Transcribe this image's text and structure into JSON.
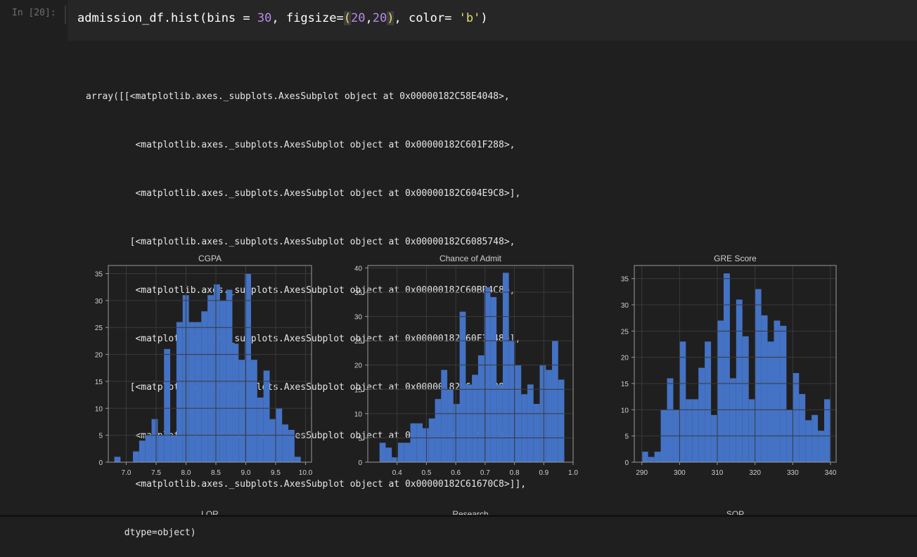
{
  "cell": {
    "prompt": "In [20]:",
    "code": {
      "fn": "admission_df.hist(bins ",
      "eq1": "=",
      "sp1": " ",
      "bins": "30",
      "mid": ", figsize",
      "eq2": "=",
      "lp": "(",
      "w": "20",
      "comma": ",",
      "h": "20",
      "rp": ")",
      "mid2": ", color",
      "eq3": "=",
      "sp2": " ",
      "color": "'b'",
      "end": ")"
    }
  },
  "output": {
    "lines": [
      "array([[<matplotlib.axes._subplots.AxesSubplot object at 0x00000182C58E4048>,",
      "         <matplotlib.axes._subplots.AxesSubplot object at 0x00000182C601F288>,",
      "         <matplotlib.axes._subplots.AxesSubplot object at 0x00000182C604E9C8>],",
      "        [<matplotlib.axes._subplots.AxesSubplot object at 0x00000182C6085748>,",
      "         <matplotlib.axes._subplots.AxesSubplot object at 0x00000182C60BB4C8>,",
      "         <matplotlib.axes._subplots.AxesSubplot object at 0x00000182C60F3248>],",
      "        [<matplotlib.axes._subplots.AxesSubplot object at 0x00000182C611EF88>,",
      "         <matplotlib.axes._subplots.AxesSubplot object at 0x00000182C6155D08>,",
      "         <matplotlib.axes._subplots.AxesSubplot object at 0x00000182C61670C8>]],",
      "       dtype=object)"
    ]
  },
  "colors": {
    "bar": "#4472c4",
    "grid": "#3a3a3a",
    "axis": "#9a9a9a",
    "text": "#d0d0d0",
    "bg": "#1f1f1f"
  },
  "chart_data": [
    {
      "type": "bar",
      "title": "CGPA",
      "xlim": [
        6.7,
        10.1
      ],
      "ylim": [
        0,
        36.5
      ],
      "xticks": [
        7.0,
        7.5,
        8.0,
        8.5,
        9.0,
        9.5,
        10.0
      ],
      "xtick_labels": [
        "7.0",
        "7.5",
        "8.0",
        "8.5",
        "9.0",
        "9.5",
        "10.0"
      ],
      "yticks": [
        0,
        5,
        10,
        15,
        20,
        25,
        30,
        35
      ],
      "ytick_labels": [
        "0",
        "5",
        "10",
        "15",
        "20",
        "25",
        "30",
        "35"
      ],
      "bin_start": 6.8,
      "bin_end": 9.92,
      "values": [
        1,
        0,
        0,
        2,
        4,
        5,
        8,
        5,
        21,
        5,
        26,
        31,
        26,
        26,
        28,
        31,
        33,
        30,
        32,
        22,
        19,
        35,
        19,
        12,
        17,
        8,
        10,
        7,
        6,
        1
      ]
    },
    {
      "type": "bar",
      "title": "Chance of Admit",
      "xlim": [
        0.3,
        1.0
      ],
      "ylim": [
        0,
        40.5
      ],
      "xticks": [
        0.4,
        0.5,
        0.6,
        0.7,
        0.8,
        0.9,
        1.0
      ],
      "xtick_labels": [
        "0.4",
        "0.5",
        "0.6",
        "0.7",
        "0.8",
        "0.9",
        "1.0"
      ],
      "yticks": [
        0,
        5,
        10,
        15,
        20,
        25,
        30,
        35,
        40
      ],
      "ytick_labels": [
        "0",
        "5",
        "10",
        "15",
        "20",
        "25",
        "30",
        "35",
        "40"
      ],
      "bin_start": 0.34,
      "bin_end": 0.97,
      "values": [
        4,
        3,
        1,
        4,
        4,
        8,
        8,
        7,
        9,
        13,
        19,
        15,
        12,
        31,
        16,
        18,
        22,
        36,
        34,
        16,
        39,
        25,
        20,
        14,
        16,
        12,
        20,
        19,
        25,
        17
      ]
    },
    {
      "type": "bar",
      "title": "GRE Score",
      "xlim": [
        288,
        341.5
      ],
      "ylim": [
        0,
        37.5
      ],
      "xticks": [
        290,
        300,
        310,
        320,
        330,
        340
      ],
      "xtick_labels": [
        "290",
        "300",
        "310",
        "320",
        "330",
        "340"
      ],
      "yticks": [
        0,
        5,
        10,
        15,
        20,
        25,
        30,
        35
      ],
      "ytick_labels": [
        "0",
        "5",
        "10",
        "15",
        "20",
        "25",
        "30",
        "35"
      ],
      "bin_start": 290,
      "bin_end": 340,
      "values": [
        2,
        1,
        2,
        10,
        16,
        10,
        23,
        12,
        12,
        18,
        23,
        9,
        27,
        36,
        16,
        31,
        24,
        12,
        33,
        28,
        23,
        27,
        26,
        10,
        17,
        13,
        8,
        9,
        6,
        12
      ]
    }
  ],
  "next_titles": [
    "LOR",
    "Research",
    "SOP"
  ]
}
